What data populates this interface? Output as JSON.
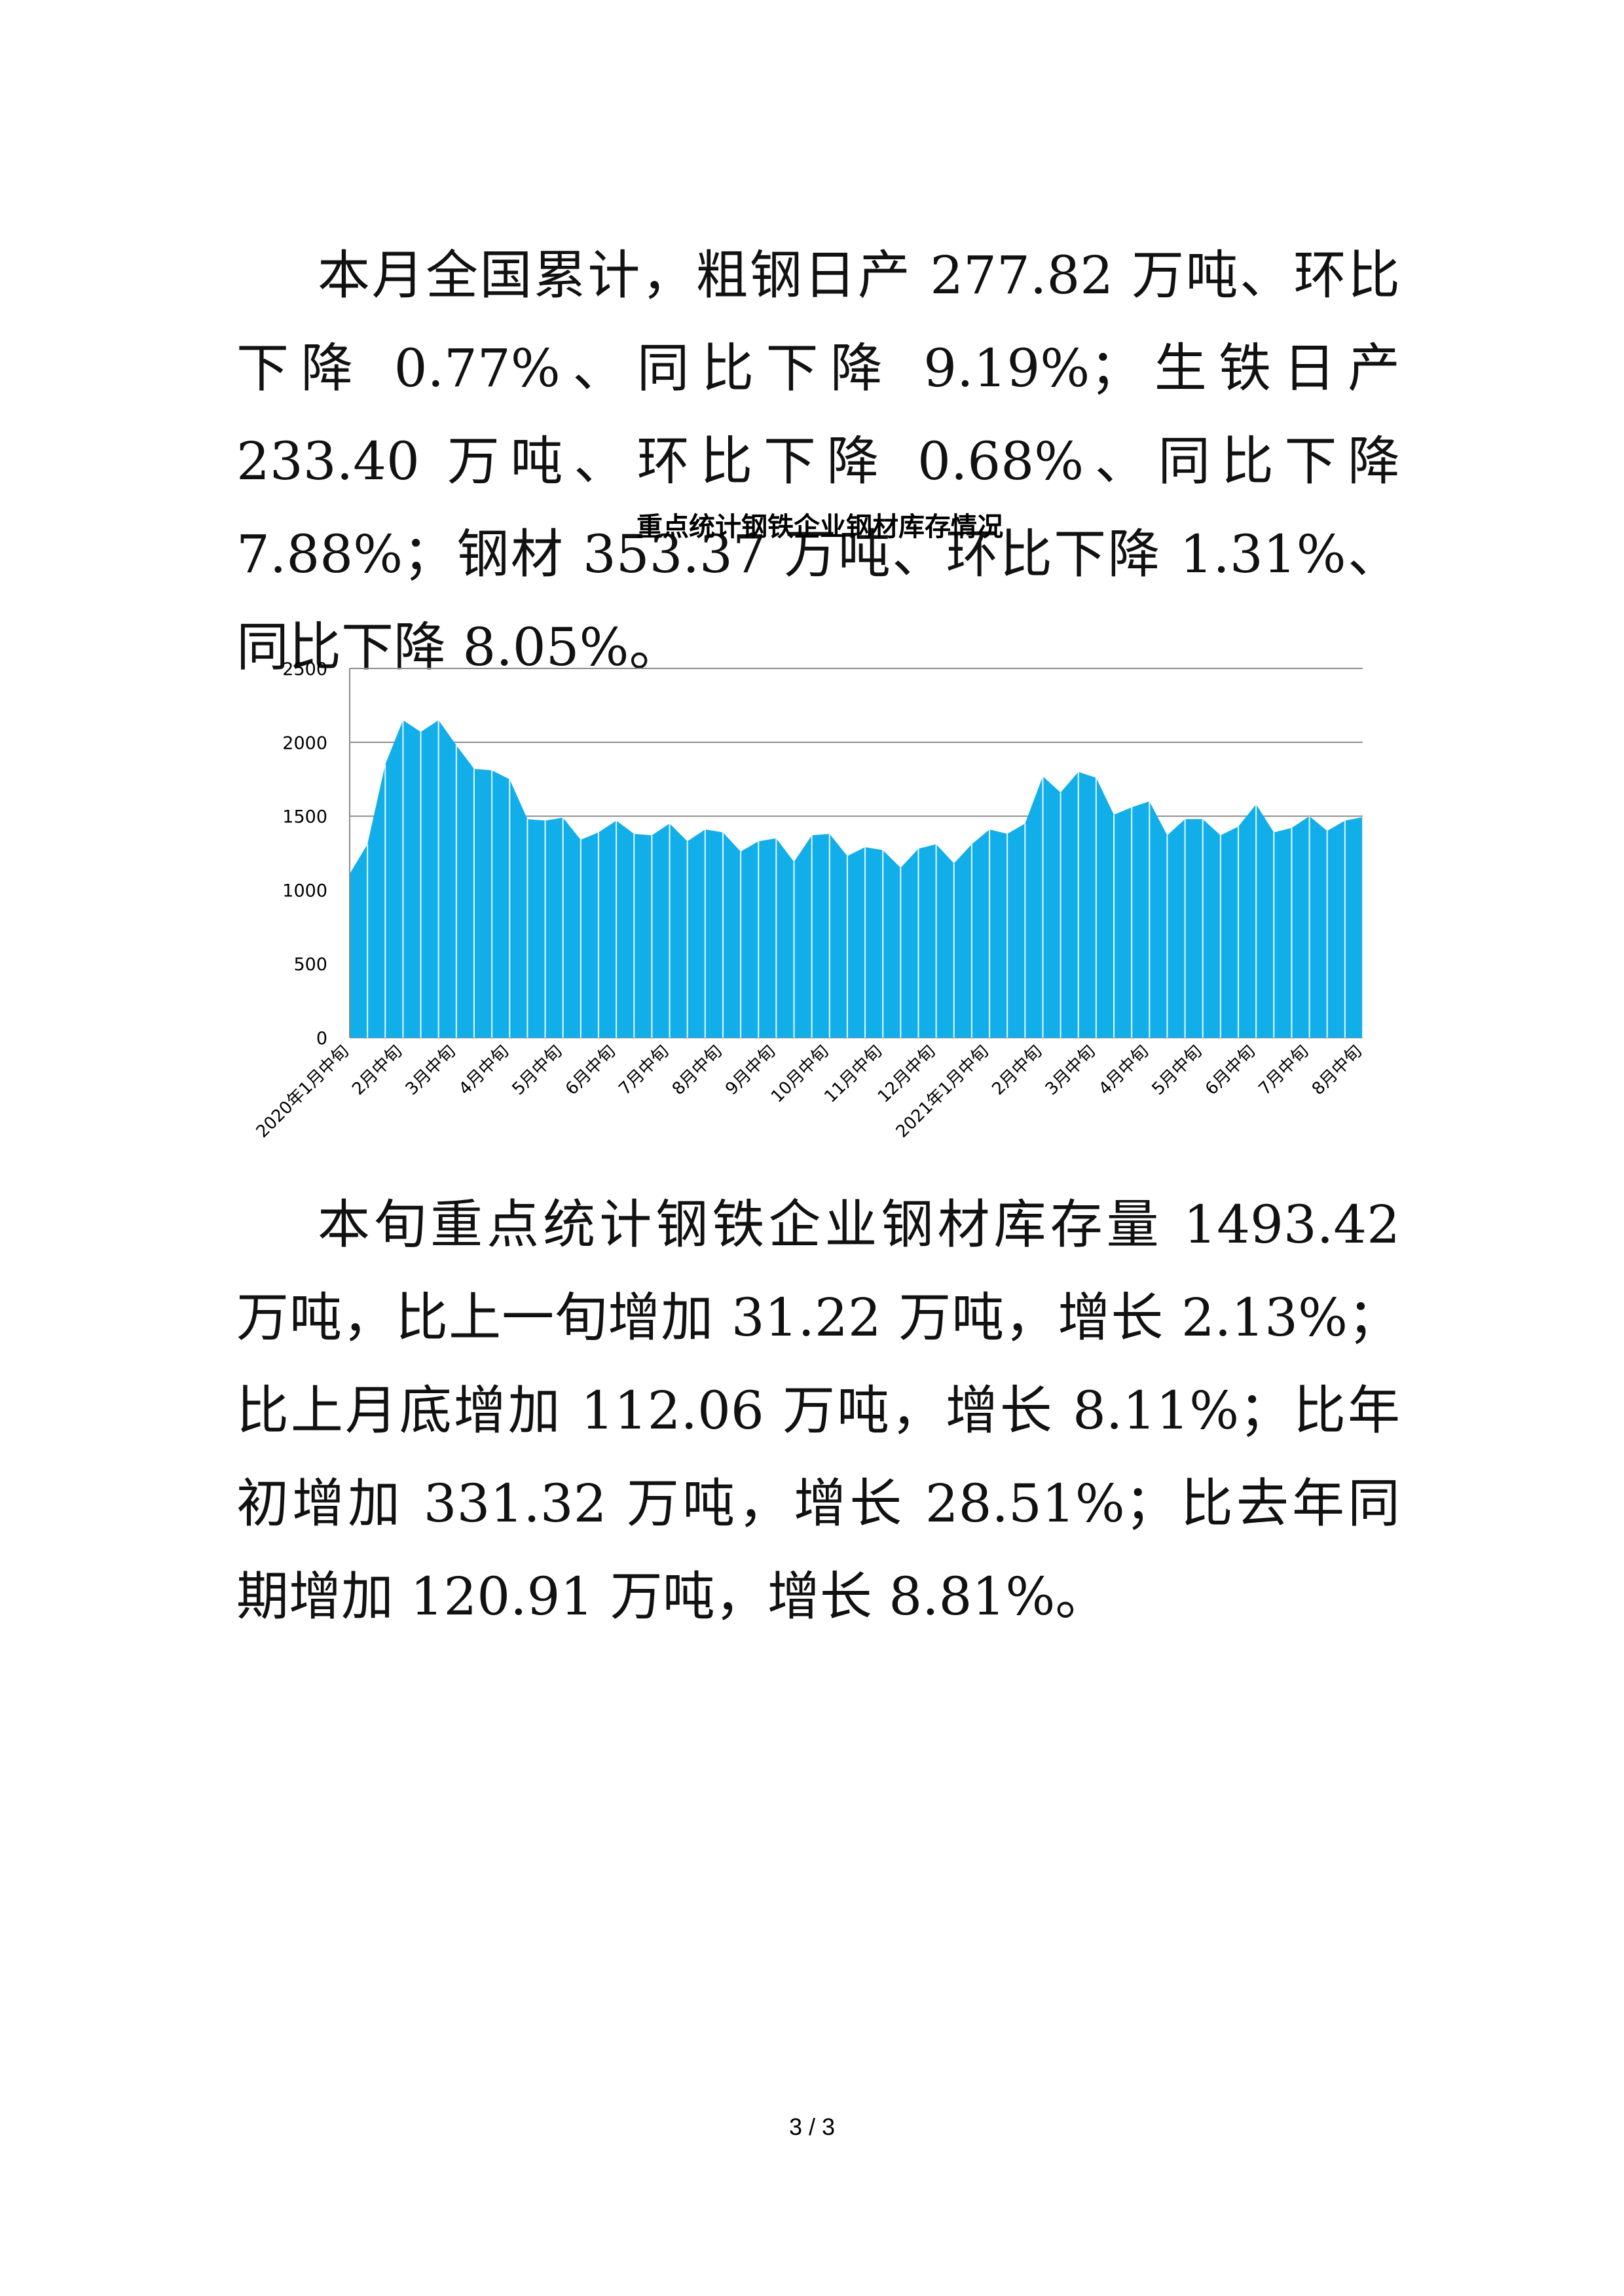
{
  "paragraphs": [
    "本月全国累计，粗钢日产 277.82 万吨、环比下降 0.77%、同比下降 9.19%；生铁日产 233.40 万吨、环比下降 0.68%、同比下降 7.88%；钢材 353.37 万吨、环比下降 1.31%、同比下降 8.05%。",
    "本旬重点统计钢铁企业钢材库存量 1493.42 万吨，比上一旬增加 31.22 万吨，增长 2.13%；比上月底增加 112.06 万吨，增长 8.11%；比年初增加 331.32 万吨，增长 28.51%；比去年同期增加 120.91 万吨，增长 8.81%。"
  ],
  "chart_data": {
    "type": "area",
    "title": "重点统计钢铁企业钢材库存情况",
    "color": "#12aeea",
    "categories": [
      "2020年1月中旬",
      null,
      null,
      "2月中旬",
      null,
      null,
      "3月中旬",
      null,
      null,
      "4月中旬",
      null,
      null,
      "5月中旬",
      null,
      null,
      "6月中旬",
      null,
      null,
      "7月中旬",
      null,
      null,
      "8月中旬",
      null,
      null,
      "9月中旬",
      null,
      null,
      "10月中旬",
      null,
      null,
      "11月中旬",
      null,
      null,
      "12月中旬",
      null,
      null,
      "2021年1月中旬",
      null,
      null,
      "2月中旬",
      null,
      null,
      "3月中旬",
      null,
      null,
      "4月中旬",
      null,
      null,
      "5月中旬",
      null,
      null,
      "6月中旬",
      null,
      null,
      "7月中旬",
      null,
      null,
      "8月中旬"
    ],
    "values": [
      1110,
      1310,
      1850,
      2150,
      2070,
      2150,
      1980,
      1820,
      1810,
      1750,
      1480,
      1470,
      1490,
      1340,
      1390,
      1470,
      1380,
      1370,
      1450,
      1330,
      1410,
      1390,
      1260,
      1330,
      1350,
      1190,
      1370,
      1380,
      1230,
      1290,
      1270,
      1150,
      1280,
      1310,
      1180,
      1310,
      1410,
      1380,
      1450,
      1770,
      1660,
      1800,
      1760,
      1510,
      1560,
      1600,
      1370,
      1480,
      1480,
      1370,
      1430,
      1580,
      1390,
      1420,
      1500,
      1400,
      1470,
      1493
    ],
    "ylim": [
      0,
      2500
    ],
    "yticks": [
      0,
      500,
      1000,
      1500,
      2000,
      2500
    ],
    "grid": true
  },
  "footer": {
    "page": "3 / 3"
  }
}
